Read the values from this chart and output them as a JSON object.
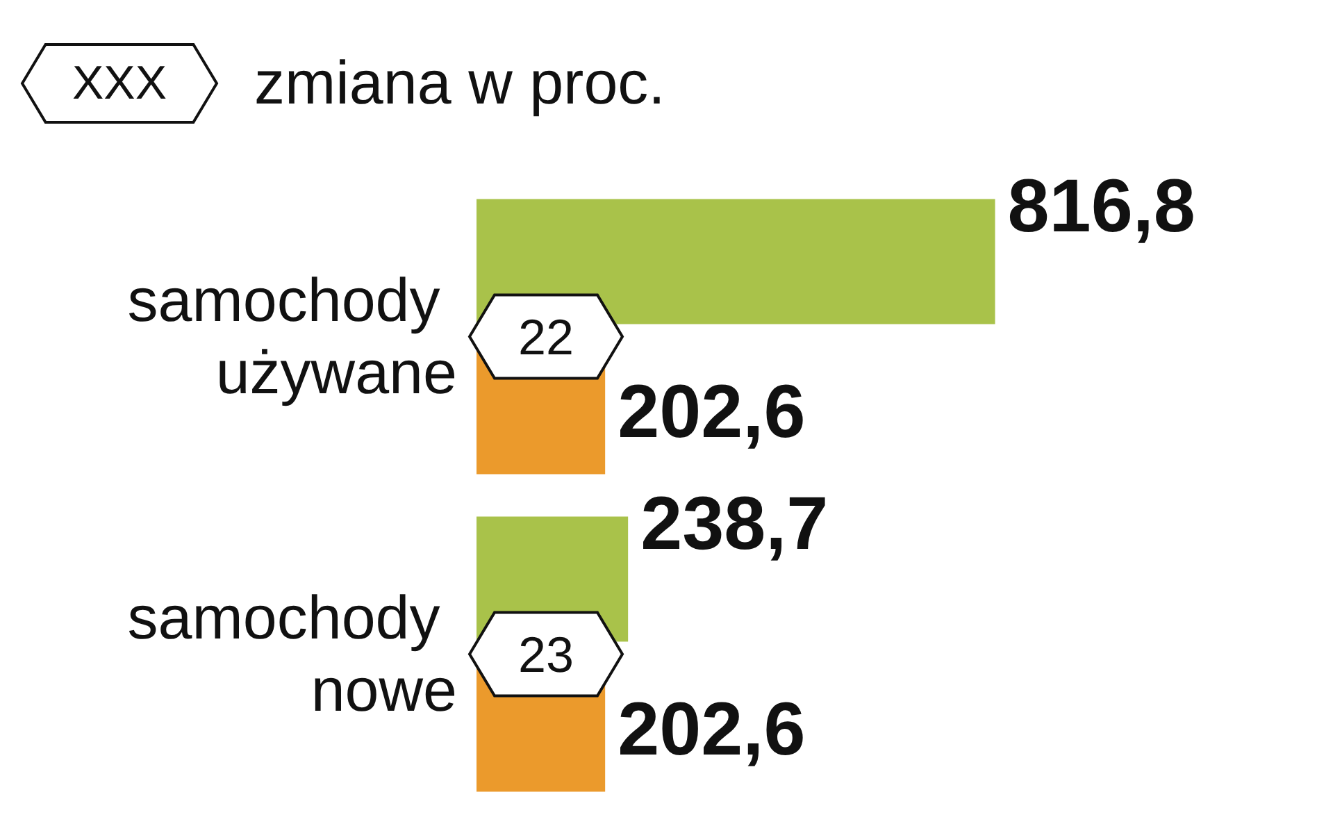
{
  "chart_data": {
    "type": "bar",
    "orientation": "horizontal",
    "categories": [
      "samochody używane",
      "samochody nowe"
    ],
    "series": [
      {
        "color": "#a9c24a",
        "values": [
          816.8,
          238.7
        ],
        "value_labels": [
          "816,8",
          "238,7"
        ]
      },
      {
        "color": "#eb9a2c",
        "values": [
          202.6,
          202.6
        ],
        "value_labels": [
          "202,6",
          "202,6"
        ]
      }
    ],
    "annotations": [
      "XXX",
      "zmiana w proc.",
      "22",
      "23"
    ],
    "tick_labels": "y"
  }
}
